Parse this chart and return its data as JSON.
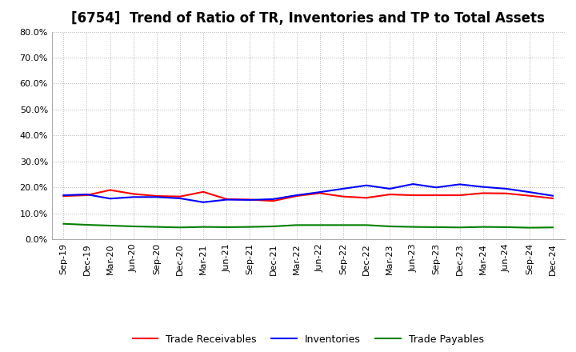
{
  "title": "[6754]  Trend of Ratio of TR, Inventories and TP to Total Assets",
  "x_labels": [
    "Sep-19",
    "Dec-19",
    "Mar-20",
    "Jun-20",
    "Sep-20",
    "Dec-20",
    "Mar-21",
    "Jun-21",
    "Sep-21",
    "Dec-21",
    "Mar-22",
    "Jun-22",
    "Sep-22",
    "Dec-22",
    "Mar-23",
    "Jun-23",
    "Sep-23",
    "Dec-23",
    "Mar-24",
    "Jun-24",
    "Sep-24",
    "Dec-24"
  ],
  "trade_receivables": [
    0.167,
    0.17,
    0.19,
    0.175,
    0.167,
    0.165,
    0.183,
    0.155,
    0.153,
    0.148,
    0.167,
    0.178,
    0.165,
    0.16,
    0.173,
    0.17,
    0.17,
    0.17,
    0.178,
    0.177,
    0.168,
    0.158
  ],
  "inventories": [
    0.17,
    0.173,
    0.157,
    0.163,
    0.163,
    0.158,
    0.143,
    0.153,
    0.152,
    0.155,
    0.17,
    0.182,
    0.195,
    0.208,
    0.195,
    0.213,
    0.2,
    0.212,
    0.202,
    0.195,
    0.182,
    0.168
  ],
  "trade_payables": [
    0.06,
    0.056,
    0.053,
    0.05,
    0.048,
    0.046,
    0.048,
    0.047,
    0.048,
    0.05,
    0.055,
    0.055,
    0.055,
    0.055,
    0.05,
    0.048,
    0.047,
    0.046,
    0.048,
    0.047,
    0.045,
    0.046
  ],
  "ylim": [
    0.0,
    0.8
  ],
  "yticks": [
    0.0,
    0.1,
    0.2,
    0.3,
    0.4,
    0.5,
    0.6,
    0.7,
    0.8
  ],
  "colors": {
    "trade_receivables": "#ff0000",
    "inventories": "#0000ff",
    "trade_payables": "#008000"
  },
  "legend_labels": [
    "Trade Receivables",
    "Inventories",
    "Trade Payables"
  ],
  "background_color": "#ffffff",
  "plot_bg_color": "#ffffff",
  "grid_color": "#999999",
  "title_fontsize": 12,
  "axis_fontsize": 8,
  "legend_fontsize": 9
}
